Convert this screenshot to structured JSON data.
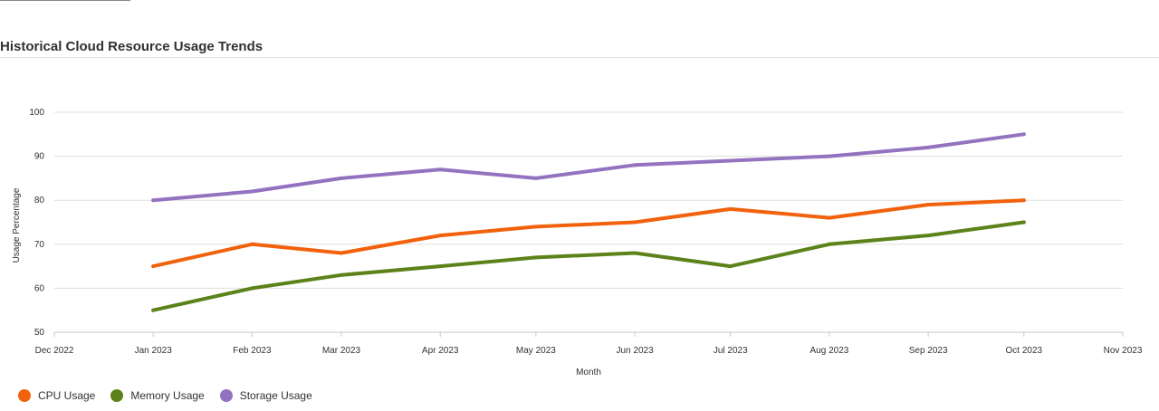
{
  "title": "Historical Cloud Resource Usage Trends",
  "chart_data": {
    "type": "line",
    "title": "Historical Cloud Resource Usage Trends",
    "xlabel": "Month",
    "ylabel": "Usage Percentage",
    "x_ticks": [
      "Dec 2022",
      "Jan 2023",
      "Feb 2023",
      "Mar 2023",
      "Apr 2023",
      "May 2023",
      "Jun 2023",
      "Jul 2023",
      "Aug 2023",
      "Sep 2023",
      "Oct 2023",
      "Nov 2023"
    ],
    "x": [
      "2023-01-01",
      "2023-02-01",
      "2023-03-01",
      "2023-04-01",
      "2023-05-01",
      "2023-06-01",
      "2023-07-01",
      "2023-08-01",
      "2023-09-01",
      "2023-10-01"
    ],
    "xlim": [
      "2022-12-01",
      "2023-11-01"
    ],
    "y_ticks": [
      50,
      60,
      70,
      80,
      90,
      100
    ],
    "ylim": [
      50,
      100
    ],
    "grid": true,
    "legend_position": "bottom-left",
    "series": [
      {
        "name": "CPU Usage",
        "color": "#f2610c",
        "values": [
          65,
          70,
          68,
          72,
          74,
          75,
          78,
          76,
          79,
          80
        ]
      },
      {
        "name": "Memory Usage",
        "color": "#5c821a",
        "values": [
          55,
          60,
          63,
          65,
          67,
          68,
          65,
          70,
          72,
          75
        ]
      },
      {
        "name": "Storage Usage",
        "color": "#9373c0",
        "values": [
          80,
          82,
          85,
          87,
          85,
          88,
          89,
          90,
          92,
          95
        ]
      }
    ]
  }
}
